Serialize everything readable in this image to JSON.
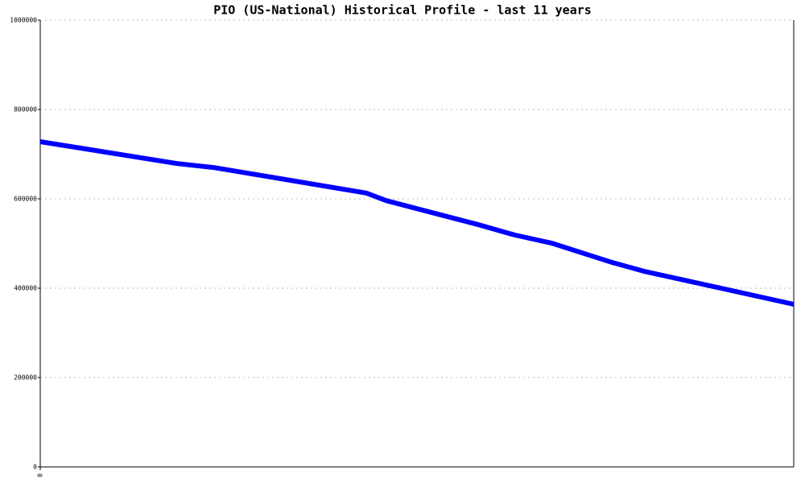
{
  "chart_data": {
    "type": "line",
    "title": "PIO (US-National) Historical Profile - last 11 years",
    "x": [
      0,
      2.0,
      2.53,
      4.76,
      5.05,
      6.4,
      6.93,
      7.46,
      8.34,
      8.81,
      11
    ],
    "series": [
      {
        "name": "PIO",
        "color": "#0000ff",
        "values": [
          728000,
          679000,
          670000,
          613000,
          596000,
          542000,
          519000,
          501000,
          458000,
          438000,
          364000
        ]
      }
    ],
    "xlim": [
      0,
      11
    ],
    "xticks": [
      0
    ],
    "ylim": [
      0,
      1000000
    ],
    "yticks": [
      0,
      200000,
      400000,
      600000,
      800000,
      1000000
    ],
    "grid": true
  }
}
